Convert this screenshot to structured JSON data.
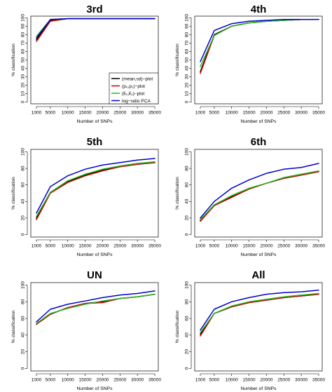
{
  "chart_data": [
    {
      "type": "line",
      "title": "3rd",
      "xlabel": "Number of SNPs",
      "ylabel": "% classification",
      "x": [
        1000,
        5000,
        10000,
        15000,
        20000,
        25000,
        30000,
        35000
      ],
      "xticks": [
        1000,
        5000,
        10000,
        15000,
        20000,
        25000,
        30000,
        35000
      ],
      "yticks": [
        0,
        10,
        20,
        30,
        40,
        50,
        60,
        70,
        80,
        90,
        100
      ],
      "ylim": [
        0,
        100
      ],
      "series": [
        {
          "name": "(mean,sd)−plot",
          "color": "#000000",
          "values": [
            74,
            97,
            99,
            99,
            99,
            99,
            99,
            99
          ]
        },
        {
          "name": "(p₀,p₁)−plot",
          "color": "#cc0000",
          "values": [
            72,
            96,
            99,
            99,
            99,
            99,
            99,
            99
          ]
        },
        {
          "name": "(k̂₀,k̂₁)−plot",
          "color": "#22bb22",
          "values": [
            78,
            98,
            99,
            99,
            99,
            99,
            99,
            99
          ]
        },
        {
          "name": "log−ratio PCA",
          "color": "#0000cc",
          "values": [
            76,
            98,
            99,
            99,
            99,
            99,
            99,
            99
          ]
        }
      ],
      "legend": "bottom-right"
    },
    {
      "type": "line",
      "title": "4th",
      "xlabel": "Number of SNPs",
      "ylabel": "% classification",
      "x": [
        1000,
        5000,
        10000,
        15000,
        20000,
        25000,
        30000,
        35000
      ],
      "xticks": [
        1000,
        5000,
        10000,
        15000,
        20000,
        25000,
        30000,
        35000
      ],
      "yticks": [
        0,
        10,
        20,
        30,
        40,
        50,
        60,
        70,
        80,
        90,
        100
      ],
      "ylim": [
        0,
        100
      ],
      "series": [
        {
          "color": "#000000",
          "values": [
            36,
            80,
            90,
            94,
            96,
            97,
            98,
            98
          ]
        },
        {
          "color": "#cc0000",
          "values": [
            34,
            79,
            90,
            94,
            96,
            97,
            98,
            98
          ]
        },
        {
          "color": "#22bb22",
          "values": [
            42,
            79,
            90,
            94,
            96,
            97,
            98,
            98
          ]
        },
        {
          "color": "#0000cc",
          "values": [
            48,
            85,
            93,
            96,
            97,
            98,
            98,
            98
          ]
        }
      ]
    },
    {
      "type": "line",
      "title": "5th",
      "xlabel": "Number of SNPs",
      "ylabel": "% classification",
      "x": [
        1000,
        5000,
        10000,
        15000,
        20000,
        25000,
        30000,
        35000
      ],
      "xticks": [
        1000,
        5000,
        10000,
        15000,
        20000,
        25000,
        30000,
        35000
      ],
      "yticks": [
        0,
        20,
        40,
        60,
        80,
        100
      ],
      "ylim": [
        0,
        100
      ],
      "series": [
        {
          "color": "#000000",
          "values": [
            20,
            51,
            64,
            72,
            78,
            82,
            85,
            87
          ]
        },
        {
          "color": "#cc0000",
          "values": [
            18,
            50,
            63,
            71,
            77,
            82,
            85,
            87
          ]
        },
        {
          "color": "#22bb22",
          "values": [
            22,
            51,
            65,
            73,
            79,
            83,
            86,
            88
          ]
        },
        {
          "color": "#0000cc",
          "values": [
            26,
            58,
            71,
            79,
            84,
            87,
            90,
            92
          ]
        }
      ]
    },
    {
      "type": "line",
      "title": "6th",
      "xlabel": "Number of SNPs",
      "ylabel": "% classification",
      "x": [
        1000,
        5000,
        10000,
        15000,
        20000,
        25000,
        30000,
        35000
      ],
      "xticks": [
        1000,
        5000,
        10000,
        15000,
        20000,
        25000,
        30000,
        35000
      ],
      "yticks": [
        0,
        20,
        40,
        60,
        80,
        100
      ],
      "ylim": [
        0,
        100
      ],
      "series": [
        {
          "color": "#000000",
          "values": [
            17,
            35,
            46,
            55,
            62,
            68,
            72,
            76
          ]
        },
        {
          "color": "#cc0000",
          "values": [
            16,
            35,
            45,
            55,
            62,
            68,
            72,
            76
          ]
        },
        {
          "color": "#22bb22",
          "values": [
            18,
            36,
            47,
            56,
            62,
            69,
            73,
            77
          ]
        },
        {
          "color": "#0000cc",
          "values": [
            20,
            40,
            56,
            66,
            74,
            79,
            81,
            86
          ]
        }
      ]
    },
    {
      "type": "line",
      "title": "UN",
      "xlabel": "Number of SNPs",
      "ylabel": "% classification",
      "x": [
        1000,
        5000,
        10000,
        15000,
        20000,
        25000,
        30000,
        35000
      ],
      "xticks": [
        1000,
        5000,
        10000,
        15000,
        20000,
        25000,
        30000,
        35000
      ],
      "yticks": [
        0,
        20,
        40,
        60,
        80,
        100
      ],
      "ylim": [
        0,
        100
      ],
      "series": [
        {
          "color": "#000000",
          "values": [
            53,
            65,
            73,
            78,
            80,
            84,
            86,
            89
          ]
        },
        {
          "color": "#cc0000",
          "values": [
            53,
            65,
            73,
            78,
            79,
            84,
            86,
            89
          ]
        },
        {
          "color": "#22bb22",
          "values": [
            54,
            66,
            72,
            77,
            81,
            84,
            86,
            89
          ]
        },
        {
          "color": "#0000cc",
          "values": [
            56,
            71,
            77,
            81,
            85,
            88,
            90,
            93
          ]
        }
      ]
    },
    {
      "type": "line",
      "title": "All",
      "xlabel": "Number of SNPs",
      "ylabel": "% classification",
      "x": [
        1000,
        5000,
        10000,
        15000,
        20000,
        25000,
        30000,
        35000
      ],
      "xticks": [
        1000,
        5000,
        10000,
        15000,
        20000,
        25000,
        30000,
        35000
      ],
      "yticks": [
        0,
        20,
        40,
        60,
        80,
        100
      ],
      "ylim": [
        0,
        100
      ],
      "series": [
        {
          "color": "#000000",
          "values": [
            41,
            66,
            74,
            79,
            82,
            85,
            87,
            89
          ]
        },
        {
          "color": "#cc0000",
          "values": [
            39,
            66,
            74,
            79,
            82,
            85,
            87,
            89
          ]
        },
        {
          "color": "#22bb22",
          "values": [
            43,
            66,
            75,
            80,
            83,
            86,
            88,
            90
          ]
        },
        {
          "color": "#0000cc",
          "values": [
            46,
            71,
            80,
            85,
            89,
            91,
            92,
            94
          ]
        }
      ]
    }
  ]
}
